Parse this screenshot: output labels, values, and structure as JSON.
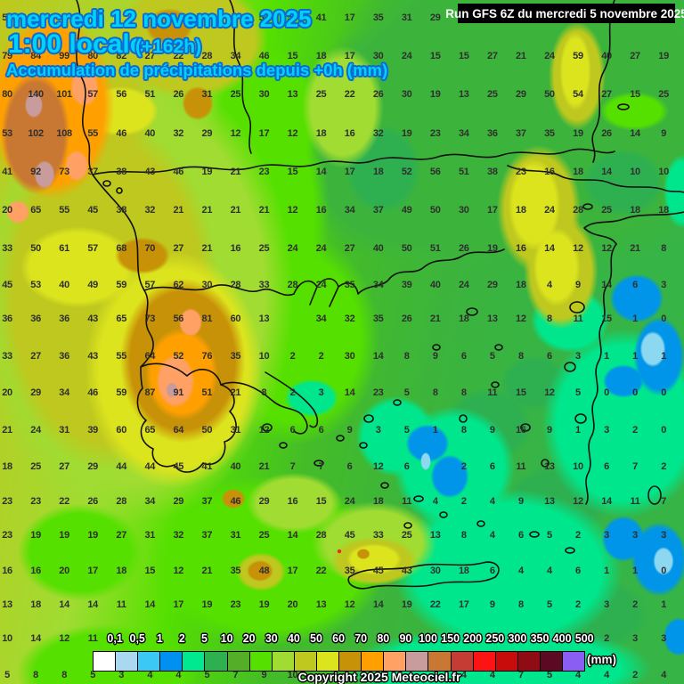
{
  "header": {
    "date_line": "mercredi 12 novembre 2025",
    "time_line": "1:00 locale",
    "offset": "(+162h)",
    "subtitle": "Accumulation de précipitations depuis +0h (mm)",
    "run_info": "Run GFS 6Z du mercredi 5 novembre 2025",
    "text_color": "#00d2f8",
    "outline_color": "#0b6ad4"
  },
  "legend": {
    "labels": [
      "0,1",
      "0,5",
      "1",
      "2",
      "5",
      "10",
      "20",
      "30",
      "40",
      "50",
      "60",
      "70",
      "80",
      "90",
      "100",
      "150",
      "200",
      "250",
      "300",
      "350",
      "400",
      "500"
    ],
    "colors": [
      "#ffffff",
      "#aad8f0",
      "#3cc8f5",
      "#0090f0",
      "#00e890",
      "#2eb050",
      "#55ae28",
      "#55e000",
      "#a0dc32",
      "#bec81e",
      "#dce41e",
      "#c89208",
      "#ffa000",
      "#ffa064",
      "#c89c9c",
      "#c87832",
      "#c43c34",
      "#fc1414",
      "#c80c0c",
      "#900c14",
      "#5c0a24",
      "#8a5ef2"
    ],
    "unit": "(mm)",
    "copyright": "Copyright 2025 Meteociel.fr"
  },
  "grid": {
    "cols": 24,
    "note": "precipitation totals (mm); empty string = value hidden behind overlay text/boxes",
    "rows": [
      [
        "52",
        "",
        "",
        "",
        "",
        "",
        "",
        "",
        "",
        "57",
        "50",
        "41",
        "17",
        "35",
        "31",
        "29",
        "",
        "",
        "",
        "",
        "",
        "",
        "",
        ""
      ],
      [
        "79",
        "84",
        "99",
        "80",
        "82",
        "27",
        "22",
        "28",
        "34",
        "46",
        "15",
        "18",
        "17",
        "30",
        "24",
        "15",
        "15",
        "27",
        "21",
        "24",
        "59",
        "40",
        "27",
        "19"
      ],
      [
        "80",
        "140",
        "101",
        "57",
        "56",
        "51",
        "26",
        "31",
        "25",
        "30",
        "13",
        "25",
        "22",
        "26",
        "30",
        "19",
        "13",
        "25",
        "29",
        "50",
        "54",
        "27",
        "15",
        "25"
      ],
      [
        "53",
        "102",
        "108",
        "55",
        "46",
        "40",
        "32",
        "29",
        "12",
        "17",
        "12",
        "18",
        "16",
        "32",
        "19",
        "23",
        "34",
        "36",
        "37",
        "35",
        "19",
        "26",
        "14",
        "9"
      ],
      [
        "41",
        "92",
        "73",
        "37",
        "38",
        "43",
        "46",
        "19",
        "21",
        "23",
        "15",
        "14",
        "17",
        "18",
        "52",
        "56",
        "51",
        "38",
        "23",
        "16",
        "18",
        "14",
        "10",
        "10"
      ],
      [
        "20",
        "65",
        "55",
        "45",
        "38",
        "32",
        "21",
        "21",
        "21",
        "21",
        "12",
        "16",
        "34",
        "37",
        "49",
        "50",
        "30",
        "17",
        "18",
        "24",
        "28",
        "25",
        "18",
        "18"
      ],
      [
        "33",
        "50",
        "61",
        "57",
        "68",
        "70",
        "27",
        "21",
        "16",
        "25",
        "24",
        "24",
        "27",
        "40",
        "50",
        "51",
        "26",
        "19",
        "16",
        "14",
        "12",
        "12",
        "21",
        "8"
      ],
      [
        "45",
        "53",
        "40",
        "49",
        "59",
        "57",
        "62",
        "30",
        "28",
        "33",
        "28",
        "24",
        "35",
        "34",
        "39",
        "40",
        "24",
        "29",
        "18",
        "4",
        "9",
        "14",
        "6",
        "3"
      ],
      [
        "36",
        "36",
        "36",
        "43",
        "65",
        "73",
        "56",
        "81",
        "60",
        "13",
        "",
        "34",
        "32",
        "35",
        "26",
        "21",
        "18",
        "13",
        "12",
        "8",
        "11",
        "15",
        "1",
        "0"
      ],
      [
        "33",
        "27",
        "36",
        "43",
        "55",
        "64",
        "52",
        "76",
        "35",
        "10",
        "2",
        "2",
        "30",
        "14",
        "8",
        "9",
        "6",
        "5",
        "8",
        "6",
        "3",
        "1",
        "1",
        "1"
      ],
      [
        "20",
        "29",
        "34",
        "46",
        "59",
        "87",
        "91",
        "51",
        "21",
        "8",
        "2",
        "3",
        "14",
        "23",
        "5",
        "8",
        "8",
        "11",
        "15",
        "12",
        "5",
        "0",
        "0",
        "0"
      ],
      [
        "21",
        "24",
        "31",
        "39",
        "60",
        "65",
        "64",
        "50",
        "31",
        "12",
        "6",
        "6",
        "9",
        "3",
        "5",
        "1",
        "8",
        "9",
        "16",
        "9",
        "1",
        "3",
        "2",
        "0"
      ],
      [
        "18",
        "25",
        "27",
        "29",
        "44",
        "44",
        "45",
        "41",
        "40",
        "21",
        "7",
        "7",
        "6",
        "12",
        "6",
        "",
        "2",
        "6",
        "11",
        "13",
        "10",
        "6",
        "7",
        "2"
      ],
      [
        "23",
        "23",
        "22",
        "26",
        "28",
        "34",
        "29",
        "37",
        "46",
        "29",
        "16",
        "15",
        "24",
        "18",
        "11",
        "4",
        "2",
        "4",
        "9",
        "13",
        "12",
        "14",
        "11",
        "7"
      ],
      [
        "23",
        "19",
        "19",
        "19",
        "27",
        "31",
        "32",
        "37",
        "31",
        "25",
        "14",
        "28",
        "45",
        "33",
        "25",
        "13",
        "8",
        "4",
        "6",
        "5",
        "2",
        "3",
        "3",
        "3"
      ],
      [
        "16",
        "16",
        "20",
        "17",
        "18",
        "15",
        "12",
        "21",
        "35",
        "48",
        "17",
        "22",
        "35",
        "45",
        "43",
        "30",
        "18",
        "6",
        "4",
        "4",
        "6",
        "1",
        "1",
        "0"
      ],
      [
        "13",
        "18",
        "14",
        "14",
        "11",
        "14",
        "17",
        "19",
        "23",
        "19",
        "20",
        "13",
        "12",
        "14",
        "19",
        "22",
        "17",
        "9",
        "8",
        "5",
        "2",
        "3",
        "2",
        "1"
      ],
      [
        "10",
        "14",
        "12",
        "11",
        "",
        "",
        "",
        "",
        "",
        "",
        "",
        "",
        "",
        "",
        "",
        "",
        "",
        "",
        "",
        "",
        "",
        "2",
        "3",
        "3"
      ],
      [
        "5",
        "8",
        "8",
        "5",
        "3",
        "4",
        "4",
        "5",
        "7",
        "9",
        "10",
        "",
        "",
        "",
        "",
        "",
        "4",
        "4",
        "7",
        "5",
        "4",
        "4",
        "2",
        "4"
      ]
    ]
  }
}
